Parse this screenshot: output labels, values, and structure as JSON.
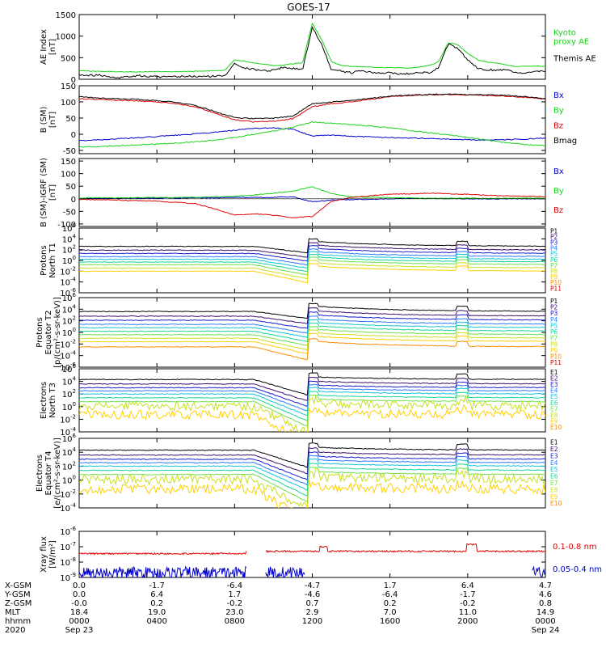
{
  "figure": {
    "title": "GOES-17",
    "bottom_row_labels": [
      "X-GSM",
      "Y-GSM",
      "Z-GSM",
      "MLT",
      "hhmm",
      "2020"
    ],
    "time_columns": [
      {
        "xgsm": "0.0",
        "ygsm": "0.0",
        "zgsm": "-0.0",
        "mlt": "18.4",
        "hhmm": "0000",
        "date": "Sep 23"
      },
      {
        "xgsm": "-1.7",
        "ygsm": "6.4",
        "zgsm": "0.2",
        "mlt": "19.0",
        "hhmm": "0400",
        "date": ""
      },
      {
        "xgsm": "-6.4",
        "ygsm": "1.7",
        "zgsm": "-0.2",
        "mlt": "23.0",
        "hhmm": "0800",
        "date": ""
      },
      {
        "xgsm": "-4.7",
        "ygsm": "-4.6",
        "zgsm": "0.7",
        "mlt": "2.9",
        "hhmm": "1200",
        "date": ""
      },
      {
        "xgsm": "1.7",
        "ygsm": "-6.4",
        "zgsm": "0.2",
        "mlt": "7.0",
        "hhmm": "1600",
        "date": ""
      },
      {
        "xgsm": "6.4",
        "ygsm": "-1.7",
        "zgsm": "-0.2",
        "mlt": "11.0",
        "hhmm": "2000",
        "date": ""
      },
      {
        "xgsm": "4.7",
        "ygsm": "4.6",
        "zgsm": "0.8",
        "mlt": "14.9",
        "hhmm": "0000",
        "date": "Sep 24"
      }
    ]
  },
  "colors": {
    "black": "#000000",
    "red": "#e00000",
    "green": "#19d419",
    "blue": "#0000cc",
    "channels": [
      "#000000",
      "#3a0f6b",
      "#1a1acc",
      "#2a7bff",
      "#13c3d6",
      "#18d49a",
      "#6ee04a",
      "#c9e020",
      "#ffd000",
      "#ff8a00",
      "#cc0000"
    ]
  },
  "chart_data": [
    {
      "id": "ae",
      "type": "line",
      "ylabel": "AE Index\n[nT]",
      "ylim": [
        0,
        1500
      ],
      "yticks": [
        0,
        500,
        1000,
        1500
      ],
      "yticklabels": [
        "0",
        "500",
        "1000",
        "1500"
      ],
      "x_hours": [
        0,
        0.5,
        1,
        1.5,
        2,
        2.5,
        3,
        3.5,
        4,
        4.5,
        5,
        5.5,
        6,
        6.5,
        7,
        7.5,
        8,
        8.5,
        9,
        9.5,
        10,
        10.5,
        11,
        11.5,
        12,
        12.5,
        13,
        13.5,
        14,
        14.5,
        15,
        15.5,
        16,
        16.5,
        17,
        17.5,
        18,
        18.5,
        19,
        19.5,
        20,
        20.5,
        21,
        21.5,
        22,
        22.5,
        23,
        23.5,
        24
      ],
      "series": [
        {
          "name": "Kyoto\nproxy AE",
          "color": "green",
          "values": [
            200,
            190,
            185,
            180,
            175,
            175,
            170,
            175,
            180,
            180,
            175,
            180,
            185,
            190,
            200,
            210,
            450,
            420,
            380,
            350,
            320,
            330,
            360,
            380,
            1300,
            900,
            400,
            320,
            300,
            290,
            280,
            275,
            270,
            265,
            260,
            280,
            320,
            400,
            850,
            800,
            600,
            450,
            400,
            380,
            330,
            300,
            300,
            310,
            300
          ]
        },
        {
          "name": "Themis AE",
          "color": "black",
          "values": [
            110,
            90,
            100,
            60,
            40,
            60,
            80,
            70,
            60,
            50,
            55,
            70,
            60,
            65,
            70,
            80,
            380,
            260,
            230,
            200,
            210,
            280,
            250,
            230,
            1200,
            800,
            200,
            190,
            150,
            200,
            160,
            130,
            160,
            120,
            130,
            170,
            150,
            260,
            820,
            700,
            450,
            250,
            220,
            210,
            230,
            160,
            130,
            200,
            190
          ]
        }
      ]
    },
    {
      "id": "bsm",
      "type": "line",
      "ylabel": "B (SM)\n[nT]",
      "ylim": [
        -60,
        150
      ],
      "yticks": [
        -50,
        0,
        50,
        100,
        150
      ],
      "yticklabels": [
        "-50",
        "0",
        "50",
        "100",
        "150"
      ],
      "x_hours": [
        0,
        1,
        2,
        3,
        4,
        5,
        6,
        7,
        8,
        9,
        10,
        11,
        12,
        13,
        14,
        15,
        16,
        17,
        18,
        19,
        20,
        21,
        22,
        23,
        24
      ],
      "series": [
        {
          "name": "Bx",
          "color": "blue",
          "values": [
            -20,
            -17,
            -14,
            -11,
            -7,
            -3,
            1,
            6,
            12,
            18,
            20,
            15,
            -5,
            -3,
            -6,
            -8,
            -10,
            -12,
            -13,
            -15,
            -17,
            -18,
            -17,
            -15,
            -12
          ]
        },
        {
          "name": "By",
          "color": "green",
          "values": [
            -40,
            -38,
            -36,
            -33,
            -30,
            -27,
            -23,
            -18,
            -10,
            0,
            10,
            22,
            38,
            34,
            30,
            25,
            20,
            12,
            5,
            -2,
            -10,
            -18,
            -26,
            -32,
            -35
          ]
        },
        {
          "name": "Bz",
          "color": "red",
          "values": [
            110,
            107,
            105,
            103,
            100,
            95,
            85,
            65,
            45,
            38,
            40,
            48,
            85,
            95,
            100,
            108,
            116,
            120,
            122,
            123,
            122,
            120,
            118,
            114,
            108
          ]
        },
        {
          "name": "Bmag",
          "color": "black",
          "values": [
            116,
            112,
            110,
            108,
            104,
            99,
            89,
            70,
            52,
            48,
            50,
            56,
            95,
            100,
            104,
            111,
            118,
            121,
            123,
            124,
            123,
            122,
            120,
            116,
            110
          ]
        }
      ]
    },
    {
      "id": "bsmigrf",
      "type": "line",
      "ylabel": "B (SM)-IGRF (SM)\n[nT]",
      "ylim": [
        -110,
        160
      ],
      "yticks": [
        -100,
        -50,
        0,
        50,
        100,
        150
      ],
      "yticklabels": [
        "-100",
        "-50",
        "0",
        "50",
        "100",
        "150"
      ],
      "x_hours": [
        0,
        1,
        2,
        3,
        4,
        5,
        6,
        7,
        8,
        9,
        10,
        11,
        12,
        13,
        14,
        15,
        16,
        17,
        18,
        19,
        20,
        21,
        22,
        23,
        24
      ],
      "series": [
        {
          "name": "Bx",
          "color": "blue",
          "values": [
            2,
            2,
            2,
            3,
            3,
            3,
            4,
            4,
            5,
            5,
            6,
            8,
            -12,
            -5,
            -3,
            -2,
            0,
            1,
            1,
            1,
            0,
            0,
            0,
            0,
            0
          ]
        },
        {
          "name": "By",
          "color": "green",
          "values": [
            3,
            4,
            4,
            4,
            5,
            5,
            6,
            8,
            10,
            15,
            22,
            30,
            48,
            20,
            8,
            6,
            4,
            3,
            2,
            2,
            2,
            2,
            2,
            2,
            2
          ]
        },
        {
          "name": "Bz",
          "color": "red",
          "values": [
            -3,
            -4,
            -5,
            -8,
            -10,
            -14,
            -20,
            -40,
            -65,
            -60,
            -65,
            -75,
            -70,
            -10,
            5,
            12,
            18,
            20,
            22,
            20,
            18,
            14,
            12,
            10,
            8
          ]
        }
      ]
    },
    {
      "id": "protons_t1",
      "type": "line",
      "log": true,
      "ylabel": "Protons\nNorth T1",
      "ylim_exp": [
        -6,
        6
      ],
      "ytick_exps": [
        -6,
        -4,
        -2,
        0,
        2,
        4,
        6
      ],
      "legend": [
        "P1",
        "P2",
        "P3",
        "P4",
        "P5",
        "P6",
        "P7",
        "P8",
        "P9",
        "P10",
        "P11"
      ],
      "base_exp": [
        2.6,
        1.9,
        1.3,
        0.7,
        0.2,
        -0.3,
        -0.8,
        -1.4,
        -2.0
      ]
    },
    {
      "id": "protons_t2",
      "type": "line",
      "log": true,
      "ylabel": "Protons\nEquator T2\n[p/(cm²-s-sr-keV)]",
      "ylim_exp": [
        -6,
        6
      ],
      "ytick_exps": [
        -6,
        -4,
        -2,
        0,
        2,
        4,
        6
      ],
      "legend": [
        "P1",
        "P2",
        "P3",
        "P4",
        "P5",
        "P6",
        "P7",
        "P8",
        "P9",
        "P10",
        "P11"
      ],
      "base_exp": [
        3.6,
        2.8,
        2.1,
        1.4,
        0.8,
        0.2,
        -0.4,
        -1.0,
        -1.6,
        -2.5
      ]
    },
    {
      "id": "electrons_t3",
      "type": "line",
      "log": true,
      "ylabel": "Electrons\nNorth T3",
      "ylim_exp": [
        -4,
        6
      ],
      "ytick_exps": [
        -4,
        -2,
        0,
        2,
        4,
        6
      ],
      "legend": [
        "E1",
        "E2",
        "E3",
        "E4",
        "E5",
        "E6",
        "E7",
        "E8",
        "E9",
        "E10"
      ],
      "base_exp": [
        4.3,
        3.6,
        3.0,
        2.5,
        2.0,
        1.4,
        0.8,
        0.1,
        -1.3
      ]
    },
    {
      "id": "electrons_t4",
      "type": "line",
      "log": true,
      "ylabel": "Electrons\nEquator T4\n[e/(cm²-s-sr-keV)]",
      "ylim_exp": [
        -4,
        6
      ],
      "ytick_exps": [
        -4,
        -2,
        0,
        2,
        4,
        6
      ],
      "legend": [
        "E1",
        "E2",
        "E3",
        "E4",
        "E5",
        "E6",
        "E7",
        "E8",
        "E9",
        "E10"
      ],
      "base_exp": [
        4.3,
        3.6,
        3.0,
        2.5,
        2.0,
        1.4,
        0.8,
        0.1,
        -1.3
      ]
    },
    {
      "id": "xray",
      "type": "line",
      "log": true,
      "ylabel": "Xray flux\n[W/m²]",
      "ylim_exp": [
        -9,
        -6
      ],
      "ytick_exps": [
        -9,
        -8,
        -7,
        -6
      ],
      "series": [
        {
          "name": "0.1-0.8 nm",
          "color": "red",
          "level_exp": -7.3
        },
        {
          "name": "0.05-0.4 nm",
          "color": "blue",
          "level_exp": -8.7
        }
      ]
    }
  ]
}
